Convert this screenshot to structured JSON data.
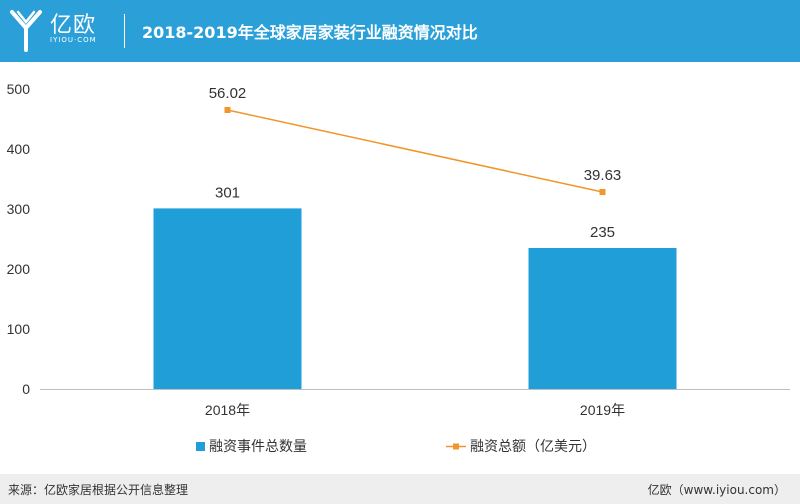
{
  "header": {
    "brand": "亿欧",
    "brand_sub": "IYIOU·COM",
    "title": "2018-2019年全球家居家装行业融资情况对比",
    "background": "#2a9fd8"
  },
  "chart_data": {
    "type": "bar",
    "title": "2018-2019年全球家居家装行业融资情况对比",
    "categories": [
      "2018年",
      "2019年"
    ],
    "ylim": [
      0,
      500
    ],
    "yticks": [
      0,
      100,
      200,
      300,
      400,
      500
    ],
    "series": [
      {
        "name": "融资事件总数量",
        "type": "bar",
        "values": [
          301,
          235
        ],
        "color": "#1f9ed8"
      },
      {
        "name": "融资总额（亿美元）",
        "type": "line",
        "values": [
          56.02,
          39.63
        ],
        "color": "#f0962a"
      }
    ],
    "grid": false,
    "legend": "bottom"
  },
  "footer": {
    "source": "来源：亿欧家居根据公开信息整理",
    "site": "亿欧（www.iyiou.com）"
  }
}
